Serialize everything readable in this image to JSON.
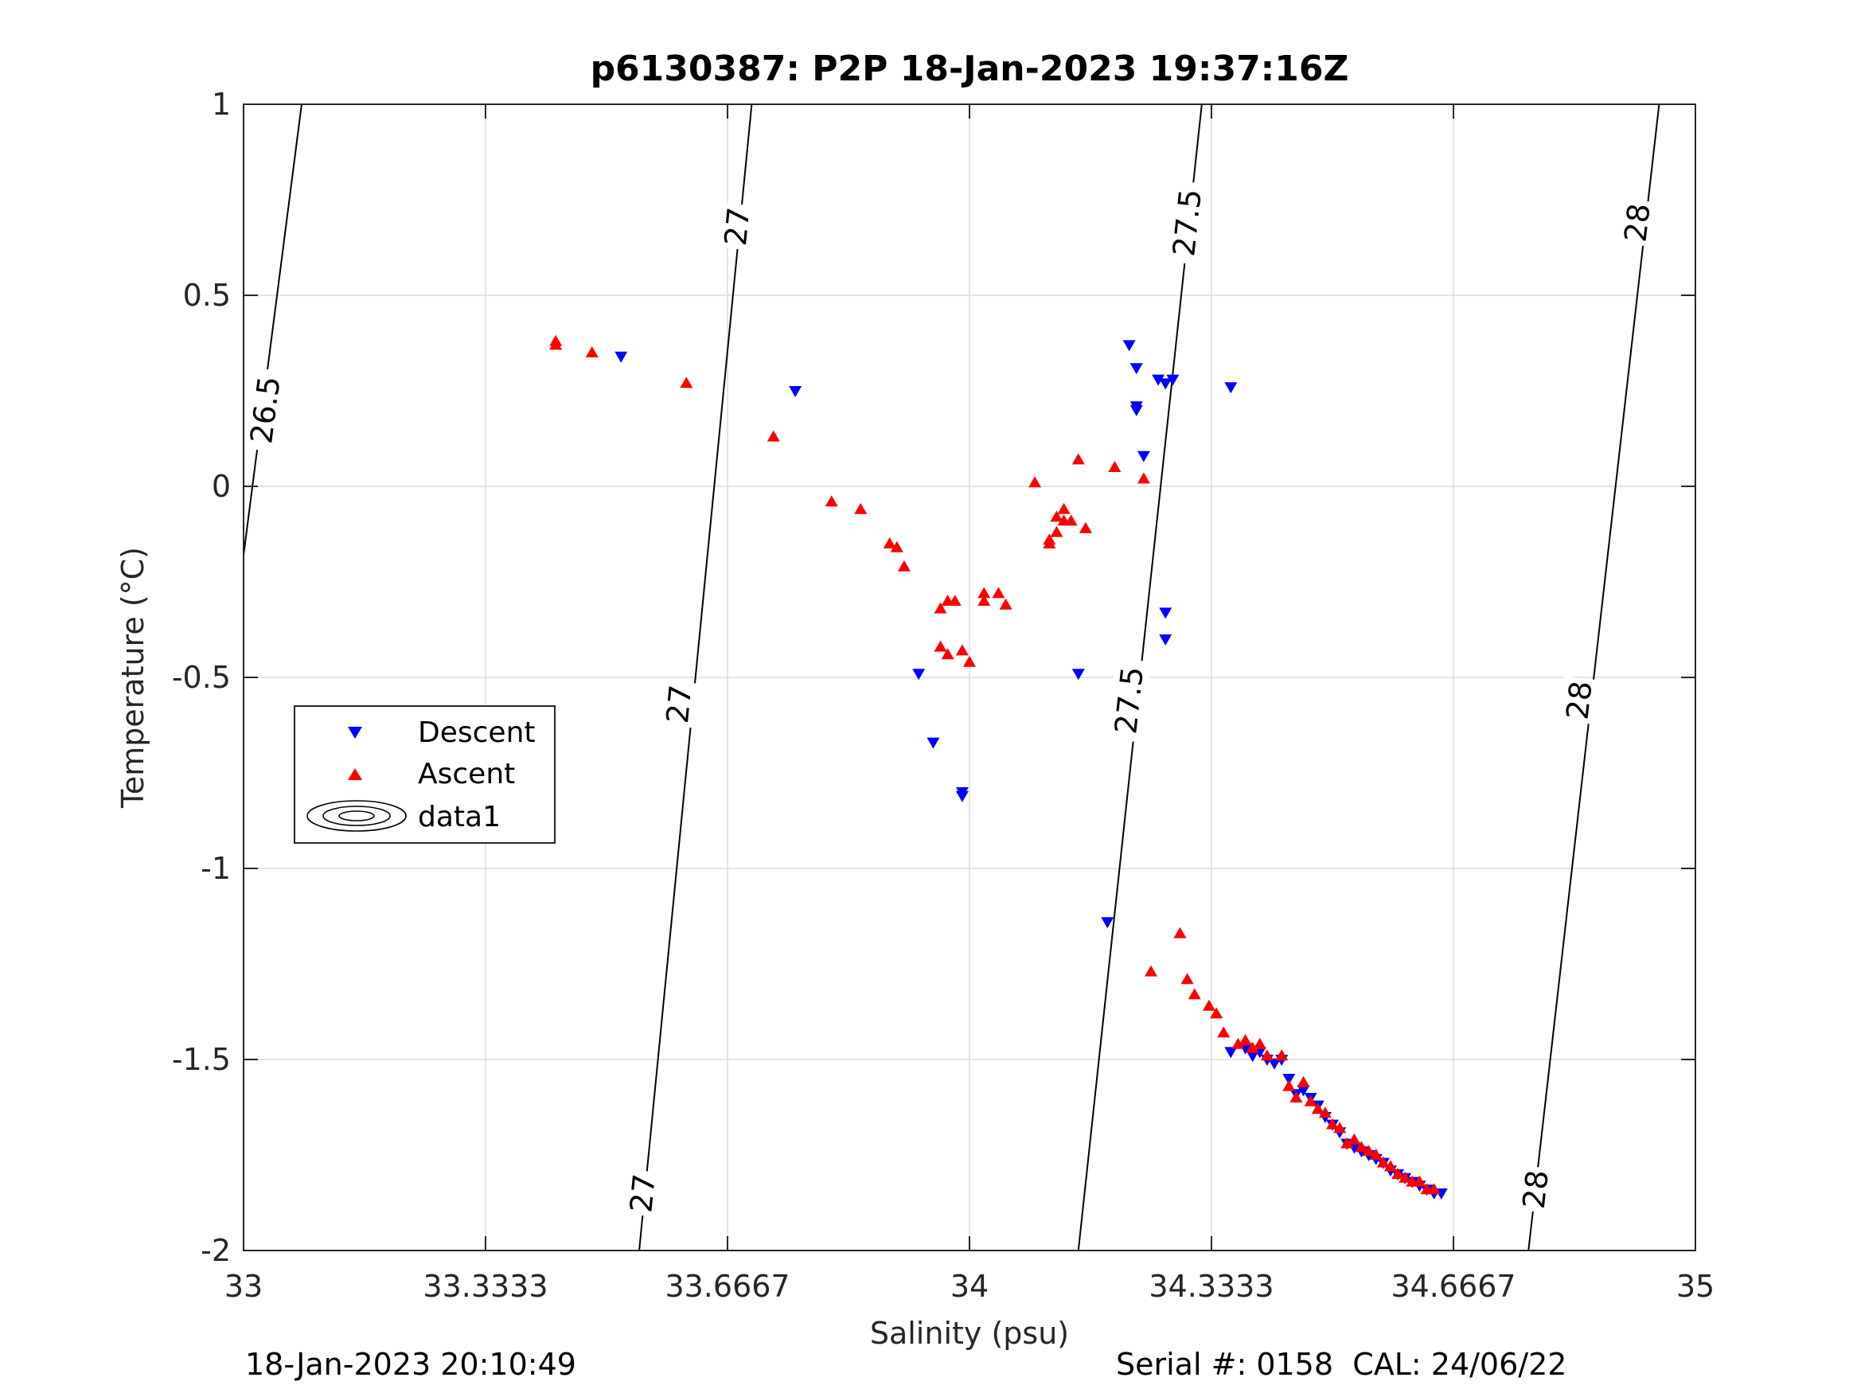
{
  "chart_data": {
    "type": "scatter",
    "title": "p6130387: P2P 18-Jan-2023 19:37:16Z",
    "xlabel": "Salinity (psu)",
    "ylabel": "Temperature (°C)",
    "xlim": [
      33,
      35
    ],
    "ylim": [
      -2,
      1
    ],
    "grid": true,
    "x_ticks": [
      "33",
      "33.3333",
      "33.6667",
      "34",
      "34.3333",
      "34.6667",
      "35"
    ],
    "y_ticks": [
      "1",
      "0.5",
      "0",
      "-0.5",
      "-1",
      "-1.5",
      "-2"
    ],
    "legend": {
      "position": "left",
      "entries": [
        "Descent",
        "Ascent",
        "data1"
      ]
    },
    "series": [
      {
        "name": "Descent",
        "marker": "triangle-down",
        "color": "#0000ff",
        "points": [
          [
            33.52,
            0.34
          ],
          [
            33.76,
            0.25
          ],
          [
            33.93,
            -0.49
          ],
          [
            33.95,
            -0.67
          ],
          [
            33.99,
            -0.8
          ],
          [
            33.99,
            -0.81
          ],
          [
            34.15,
            -0.49
          ],
          [
            34.19,
            -1.14
          ],
          [
            34.22,
            0.37
          ],
          [
            34.23,
            0.31
          ],
          [
            34.23,
            0.21
          ],
          [
            34.23,
            0.2
          ],
          [
            34.24,
            0.08
          ],
          [
            34.26,
            0.28
          ],
          [
            34.27,
            0.27
          ],
          [
            34.27,
            -0.33
          ],
          [
            34.27,
            -0.4
          ],
          [
            34.28,
            0.28
          ],
          [
            34.36,
            0.26
          ],
          [
            34.36,
            -1.48
          ],
          [
            34.38,
            -1.47
          ],
          [
            34.39,
            -1.49
          ],
          [
            34.4,
            -1.48
          ],
          [
            34.41,
            -1.5
          ],
          [
            34.42,
            -1.51
          ],
          [
            34.43,
            -1.5
          ],
          [
            34.44,
            -1.55
          ],
          [
            34.45,
            -1.59
          ],
          [
            34.46,
            -1.58
          ],
          [
            34.47,
            -1.6
          ],
          [
            34.48,
            -1.62
          ],
          [
            34.49,
            -1.65
          ],
          [
            34.5,
            -1.67
          ],
          [
            34.51,
            -1.69
          ],
          [
            34.52,
            -1.72
          ],
          [
            34.53,
            -1.73
          ],
          [
            34.54,
            -1.74
          ],
          [
            34.55,
            -1.75
          ],
          [
            34.56,
            -1.76
          ],
          [
            34.57,
            -1.77
          ],
          [
            34.58,
            -1.79
          ],
          [
            34.59,
            -1.8
          ],
          [
            34.6,
            -1.81
          ],
          [
            34.61,
            -1.82
          ],
          [
            34.62,
            -1.83
          ],
          [
            34.63,
            -1.84
          ],
          [
            34.64,
            -1.85
          ],
          [
            34.65,
            -1.85
          ]
        ]
      },
      {
        "name": "Ascent",
        "marker": "triangle-up",
        "color": "#ff0000",
        "points": [
          [
            33.43,
            0.37
          ],
          [
            33.43,
            0.38
          ],
          [
            33.48,
            0.35
          ],
          [
            33.61,
            0.27
          ],
          [
            33.73,
            0.13
          ],
          [
            33.81,
            -0.04
          ],
          [
            33.85,
            -0.06
          ],
          [
            33.89,
            -0.15
          ],
          [
            33.9,
            -0.16
          ],
          [
            33.91,
            -0.21
          ],
          [
            33.96,
            -0.42
          ],
          [
            33.96,
            -0.32
          ],
          [
            33.97,
            -0.3
          ],
          [
            33.98,
            -0.3
          ],
          [
            33.97,
            -0.44
          ],
          [
            33.99,
            -0.43
          ],
          [
            34.0,
            -0.46
          ],
          [
            34.02,
            -0.3
          ],
          [
            34.02,
            -0.28
          ],
          [
            34.04,
            -0.28
          ],
          [
            34.05,
            -0.31
          ],
          [
            34.09,
            0.01
          ],
          [
            34.11,
            -0.15
          ],
          [
            34.11,
            -0.14
          ],
          [
            34.12,
            -0.12
          ],
          [
            34.12,
            -0.08
          ],
          [
            34.13,
            -0.06
          ],
          [
            34.13,
            -0.09
          ],
          [
            34.14,
            -0.09
          ],
          [
            34.15,
            0.07
          ],
          [
            34.16,
            -0.11
          ],
          [
            34.2,
            0.05
          ],
          [
            34.24,
            0.02
          ],
          [
            34.25,
            -1.27
          ],
          [
            34.29,
            -1.17
          ],
          [
            34.3,
            -1.29
          ],
          [
            34.31,
            -1.33
          ],
          [
            34.33,
            -1.36
          ],
          [
            34.34,
            -1.38
          ],
          [
            34.35,
            -1.43
          ],
          [
            34.37,
            -1.46
          ],
          [
            34.38,
            -1.45
          ],
          [
            34.39,
            -1.47
          ],
          [
            34.4,
            -1.46
          ],
          [
            34.41,
            -1.49
          ],
          [
            34.43,
            -1.49
          ],
          [
            34.44,
            -1.57
          ],
          [
            34.45,
            -1.6
          ],
          [
            34.46,
            -1.56
          ],
          [
            34.47,
            -1.61
          ],
          [
            34.48,
            -1.63
          ],
          [
            34.49,
            -1.64
          ],
          [
            34.5,
            -1.67
          ],
          [
            34.51,
            -1.68
          ],
          [
            34.52,
            -1.72
          ],
          [
            34.53,
            -1.71
          ],
          [
            34.54,
            -1.73
          ],
          [
            34.55,
            -1.74
          ],
          [
            34.56,
            -1.75
          ],
          [
            34.57,
            -1.77
          ],
          [
            34.58,
            -1.78
          ],
          [
            34.59,
            -1.8
          ],
          [
            34.6,
            -1.81
          ],
          [
            34.61,
            -1.82
          ],
          [
            34.62,
            -1.82
          ],
          [
            34.63,
            -1.84
          ],
          [
            34.64,
            -1.84
          ]
        ]
      }
    ],
    "density_contours": [
      {
        "label": "26.5",
        "color": "#000000",
        "line": [
          [
            33.0,
            -0.18
          ],
          [
            33.08,
            1.0
          ]
        ],
        "label_positions": [
          [
            33.03,
            0.2
          ]
        ]
      },
      {
        "label": "27",
        "color": "#000000",
        "line": [
          [
            33.545,
            -2.0
          ],
          [
            33.7,
            1.0
          ]
        ],
        "label_positions": [
          [
            33.55,
            -1.85
          ],
          [
            33.6,
            -0.57
          ],
          [
            33.68,
            0.68
          ]
        ]
      },
      {
        "label": "27.5",
        "color": "#000000",
        "line": [
          [
            34.15,
            -2.0
          ],
          [
            34.32,
            1.0
          ]
        ],
        "label_positions": [
          [
            34.22,
            -0.56
          ],
          [
            34.3,
            0.69
          ]
        ]
      },
      {
        "label": "28",
        "color": "#000000",
        "line": [
          [
            34.77,
            -2.0
          ],
          [
            34.95,
            1.0
          ]
        ],
        "label_positions": [
          [
            34.78,
            -1.84
          ],
          [
            34.84,
            -0.56
          ],
          [
            34.92,
            0.69
          ]
        ]
      }
    ]
  },
  "footer": {
    "left_timestamp": "18-Jan-2023 20:10:49",
    "right_info": "Serial #: 0158  CAL: 24/06/22"
  }
}
